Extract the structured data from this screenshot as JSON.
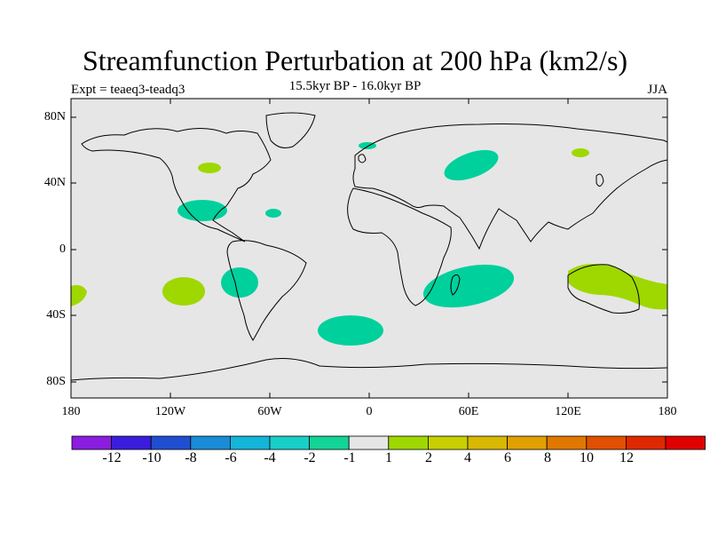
{
  "title": "Streamfunction Perturbation at 200 hPa (km2/s)",
  "subtitle": "15.5kyr BP - 16.0kyr BP",
  "left_label": "Expt = teaeq3-teadq3",
  "right_label": "JJA",
  "axes": {
    "y_ticks": [
      "80N",
      "40N",
      "0",
      "40S",
      "80S"
    ],
    "x_ticks": [
      "180",
      "120W",
      "60W",
      "0",
      "60E",
      "120E",
      "180"
    ]
  },
  "colors": {
    "land_ocean_bg": "#e6e6e6",
    "negative_band": "#00d09c",
    "positive_band": "#9ed800"
  },
  "colorbar": {
    "colors": [
      "#8a1de0",
      "#3a1ddc",
      "#1f4fd0",
      "#1a8bd6",
      "#13b5d8",
      "#18cfc8",
      "#12d496",
      "#e6e6e6",
      "#9ed800",
      "#c8d000",
      "#d8b800",
      "#e0a000",
      "#e07800",
      "#e05000",
      "#e02800",
      "#e00000"
    ],
    "labels": [
      "-12",
      "-10",
      "-8",
      "-6",
      "-4",
      "-2",
      "-1",
      "1",
      "2",
      "4",
      "6",
      "8",
      "10",
      "12"
    ]
  }
}
